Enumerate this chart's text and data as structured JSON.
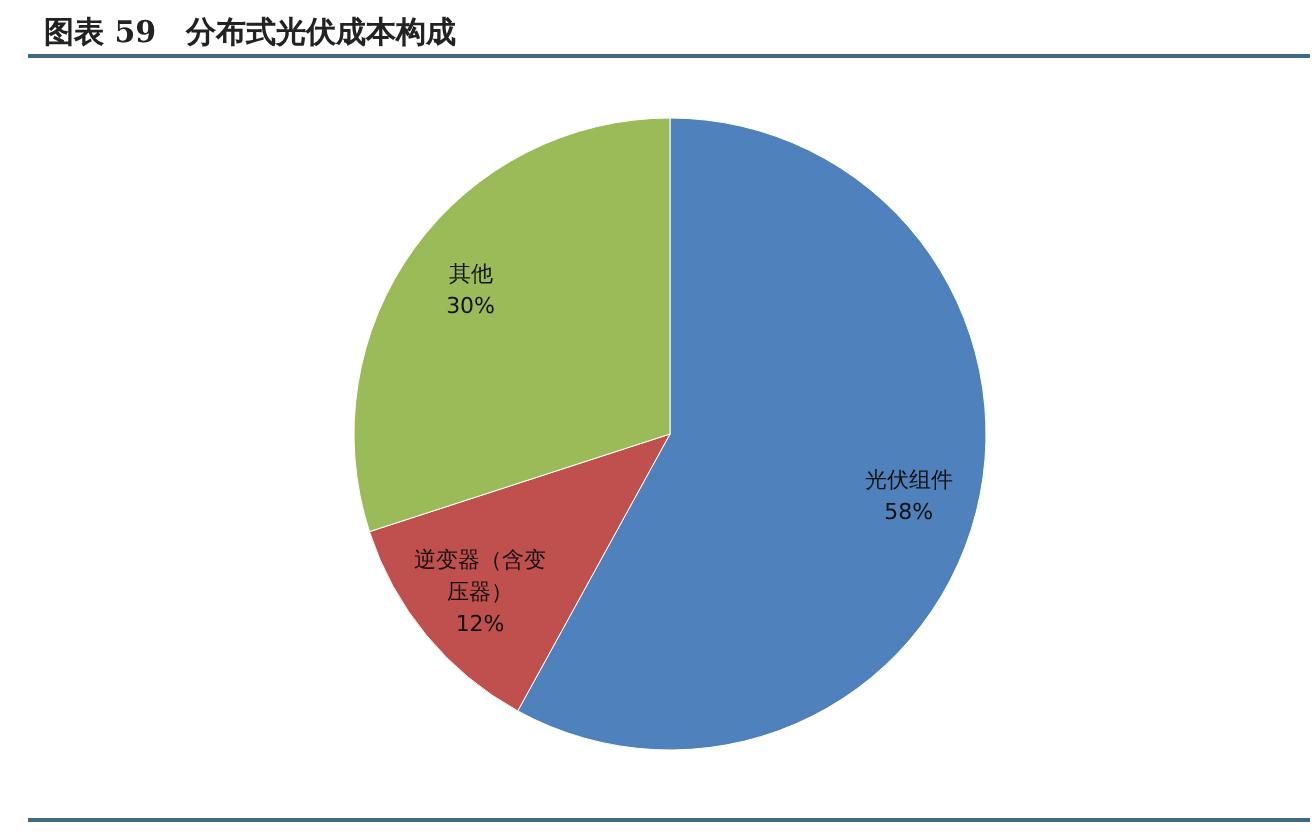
{
  "chart_data": {
    "type": "pie",
    "title": "图表 59　分布式光伏成本构成",
    "categories": [
      "光伏组件",
      "逆变器（含变压器）",
      "其他"
    ],
    "values": [
      58,
      12,
      30
    ],
    "colors": [
      "#4f81bd",
      "#c0504d",
      "#9bbb59"
    ],
    "value_labels": [
      "58%",
      "12%",
      "30%"
    ],
    "legend": false
  }
}
